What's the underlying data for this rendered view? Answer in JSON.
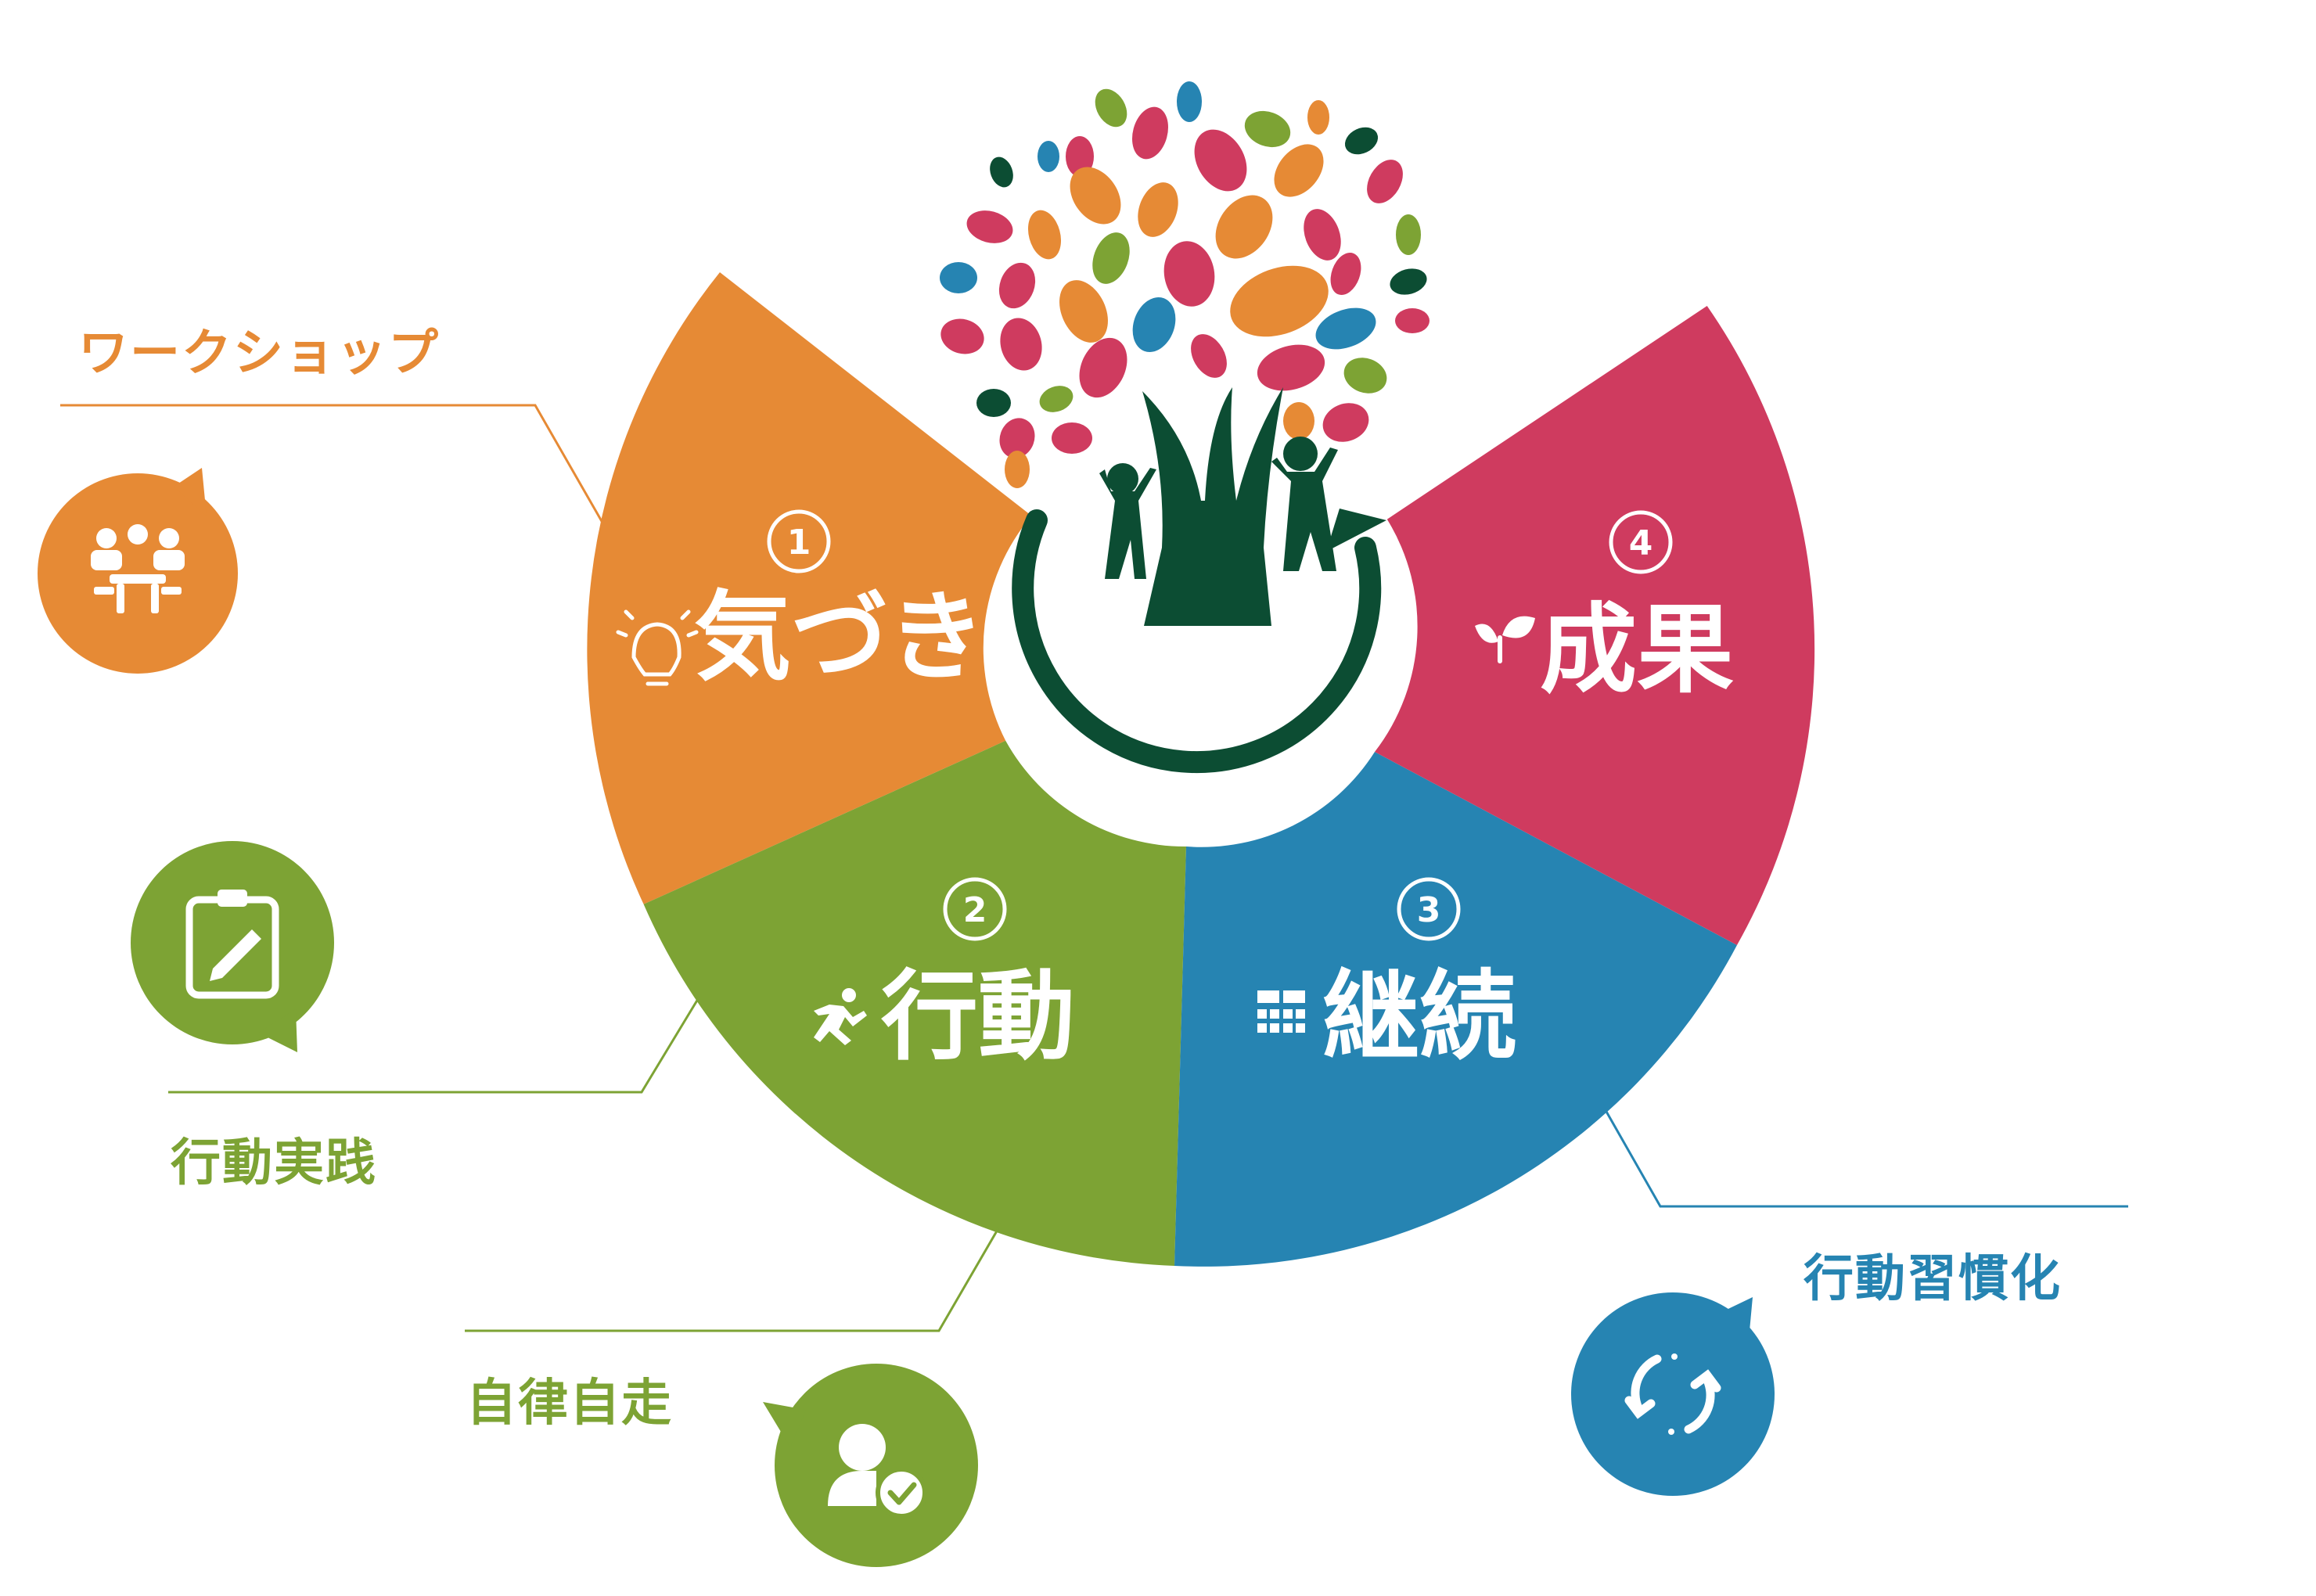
{
  "colors": {
    "orange": "#e68a35",
    "green": "#7da334",
    "blue": "#2684b2",
    "red": "#cf3b5f",
    "dark_green": "#0c4d33"
  },
  "segments": [
    {
      "number": "1",
      "title": "気づき",
      "icon": "lightbulb-icon",
      "color": "#e68a35"
    },
    {
      "number": "2",
      "title": "行動",
      "icon": "running-person-icon",
      "color": "#7da334"
    },
    {
      "number": "3",
      "title": "継続",
      "icon": "calendar-grid-icon",
      "color": "#2684b2"
    },
    {
      "number": "4",
      "title": "成果",
      "icon": "sprout-icon",
      "color": "#cf3b5f"
    }
  ],
  "callouts": {
    "workshop": {
      "label": "ワークショップ",
      "icon": "meeting-people-icon",
      "color": "#e68a35"
    },
    "practice": {
      "label": "行動実践",
      "icon": "clipboard-pencil-icon",
      "color": "#7da334"
    },
    "autonomy": {
      "label": "自律自走",
      "icon": "person-check-icon",
      "color": "#7da334"
    },
    "habit": {
      "label": "行動習慣化",
      "icon": "refresh-cycle-icon",
      "color": "#2684b2"
    }
  },
  "center": {
    "icon": "tree-people-logo-icon"
  }
}
